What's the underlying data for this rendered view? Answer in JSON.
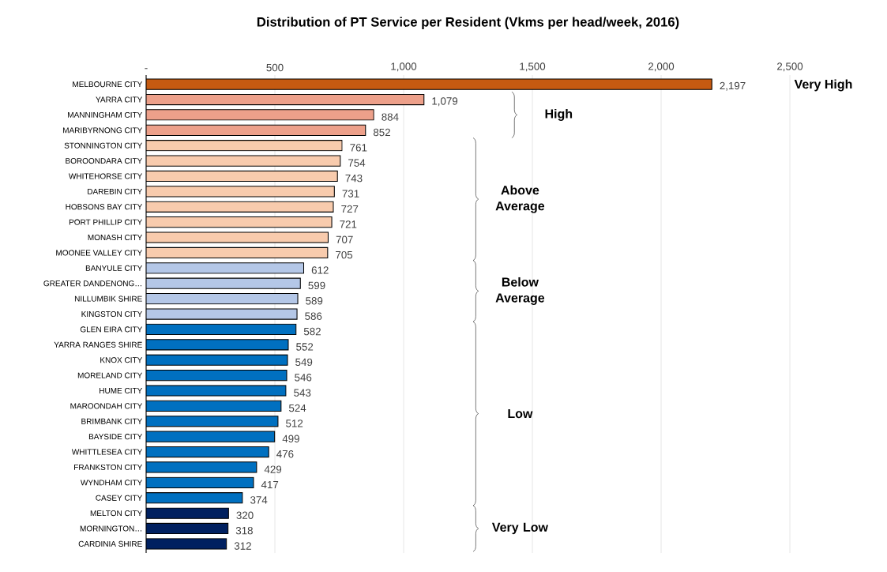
{
  "chart_data": {
    "type": "bar",
    "orientation": "horizontal",
    "title": "Distribution of PT Service per Resident (Vkms per head/week, 2016)",
    "categories": [
      "MELBOURNE CITY",
      "YARRA CITY",
      "MANNINGHAM CITY",
      "MARIBYRNONG CITY",
      "STONNINGTON CITY",
      "BOROONDARA CITY",
      "WHITEHORSE CITY",
      "DAREBIN CITY",
      "HOBSONS BAY CITY",
      "PORT PHILLIP CITY",
      "MONASH CITY",
      "MOONEE VALLEY CITY",
      "BANYULE CITY",
      "GREATER DANDENONG…",
      "NILLUMBIK SHIRE",
      "KINGSTON CITY",
      "GLEN EIRA CITY",
      "YARRA RANGES SHIRE",
      "KNOX CITY",
      "MORELAND CITY",
      "HUME CITY",
      "MAROONDAH CITY",
      "BRIMBANK CITY",
      "BAYSIDE CITY",
      "WHITTLESEA CITY",
      "FRANKSTON CITY",
      "WYNDHAM CITY",
      "CASEY CITY",
      "MELTON CITY",
      "MORNINGTON…",
      "CARDINIA SHIRE"
    ],
    "values": [
      2197,
      1079,
      884,
      852,
      761,
      754,
      743,
      731,
      727,
      721,
      707,
      705,
      612,
      599,
      589,
      586,
      582,
      552,
      549,
      546,
      543,
      524,
      512,
      499,
      476,
      429,
      417,
      374,
      320,
      318,
      312
    ],
    "value_labels": [
      "2,197",
      "1,079",
      "884",
      "852",
      "761",
      "754",
      "743",
      "731",
      "727",
      "721",
      "707",
      "705",
      "612",
      "599",
      "589",
      "586",
      "582",
      "552",
      "549",
      "546",
      "543",
      "524",
      "512",
      "499",
      "476",
      "429",
      "417",
      "374",
      "320",
      "318",
      "312"
    ],
    "colors": [
      "#c55a11",
      "#eda08a",
      "#eda08a",
      "#eda08a",
      "#f8cbad",
      "#f8cbad",
      "#f8cbad",
      "#f8cbad",
      "#f8cbad",
      "#f8cbad",
      "#f8cbad",
      "#f8cbad",
      "#b4c7e7",
      "#b4c7e7",
      "#b4c7e7",
      "#b4c7e7",
      "#0070c0",
      "#0070c0",
      "#0070c0",
      "#0070c0",
      "#0070c0",
      "#0070c0",
      "#0070c0",
      "#0070c0",
      "#0070c0",
      "#0070c0",
      "#0070c0",
      "#0070c0",
      "#002060",
      "#002060",
      "#002060"
    ],
    "xlim": [
      0,
      2500
    ],
    "xticks": [
      {
        "value": 0,
        "label": "-"
      },
      500,
      {
        "value": 1000,
        "label": "1,000"
      },
      {
        "value": 1500,
        "label": "1,500"
      },
      {
        "value": 2000,
        "label": "2,000"
      },
      {
        "value": 2500,
        "label": "2,500"
      }
    ],
    "grid": "x",
    "annotations": [
      "Very High",
      "High",
      "Above Average",
      "Below Average",
      "Low",
      "Very Low"
    ]
  }
}
